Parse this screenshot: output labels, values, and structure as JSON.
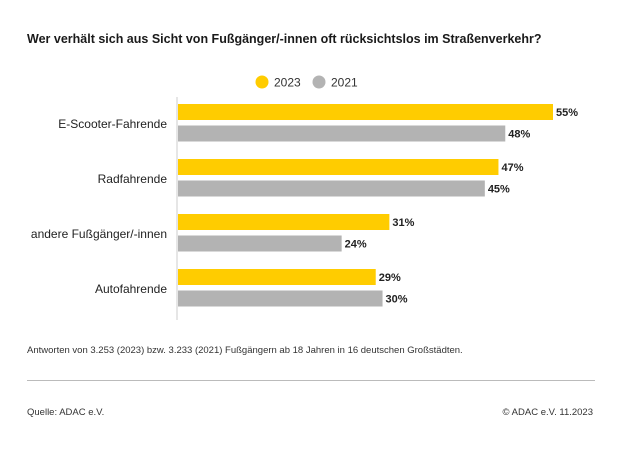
{
  "title": "Wer verhält sich aus Sicht von Fußgänger/-innen oft rücksichtslos im Straßenverkehr?",
  "note": "Antworten von 3.253 (2023) bzw. 3.233 (2021) Fußgängern ab 18 Jahren in 16 deutschen Großstädten.",
  "source": "Quelle: ADAC e.V.",
  "copyright": "© ADAC e.V. 11.2023",
  "chart_data": {
    "type": "bar",
    "orientation": "horizontal",
    "title": "Wer verhält sich aus Sicht von Fußgänger/-innen oft rücksichtslos im Straßenverkehr?",
    "categories": [
      "E-Scooter-Fahrende",
      "Radfahrende",
      "andere Fußgänger/-innen",
      "Autofahrende"
    ],
    "series": [
      {
        "name": "2023",
        "color": "#FFCC00",
        "values": [
          55,
          47,
          31,
          29
        ]
      },
      {
        "name": "2021",
        "color": "#B3B3B3",
        "values": [
          48,
          45,
          24,
          30
        ]
      }
    ],
    "unit": "%",
    "xlim": [
      0,
      55
    ],
    "legend": "top-center",
    "grid": false
  }
}
